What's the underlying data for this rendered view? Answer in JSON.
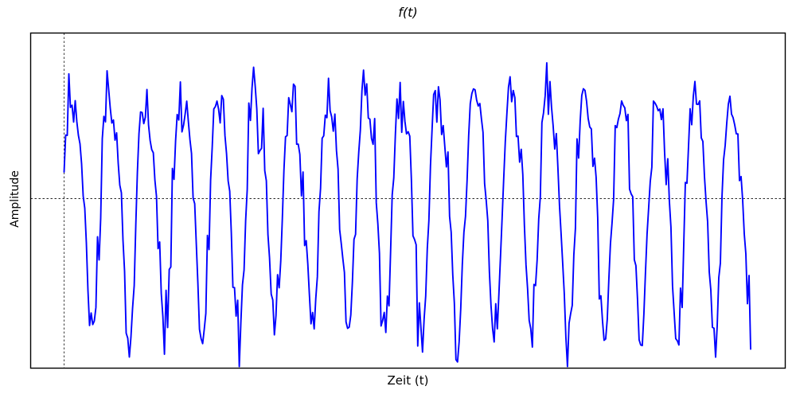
{
  "figure": {
    "background": "#ffffff",
    "border_color": "#000000"
  },
  "chart_data": {
    "type": "line",
    "title": "f(t)",
    "xlabel": "Zeit (t)",
    "ylabel": "Amplitude",
    "grid": false,
    "legend": "none",
    "axis_ticks": "none",
    "xlim_periods": [
      0,
      18.75
    ],
    "ylim": [
      -1.4,
      1.4
    ],
    "reference_lines": [
      {
        "orientation": "vertical",
        "x": 0,
        "style": "dashed",
        "color": "#2a2a2a",
        "width": 0.9
      },
      {
        "orientation": "horizontal",
        "y": 0,
        "style": "dashed",
        "color": "#2a2a2a",
        "width": 0.9
      }
    ],
    "series": [
      {
        "name": "f(t)",
        "color": "#0000ff",
        "line_width": 1.9,
        "n_points": 432,
        "periods": 18.75,
        "harmonics": [
          {
            "order": 1,
            "amplitude": 0.95,
            "phase": 0.0
          },
          {
            "order": 2,
            "amplitude": 0.18,
            "phase": 1.1
          }
        ],
        "noise": {
          "distribution": "normal",
          "sigma": 0.14,
          "seed": 31
        }
      }
    ]
  }
}
